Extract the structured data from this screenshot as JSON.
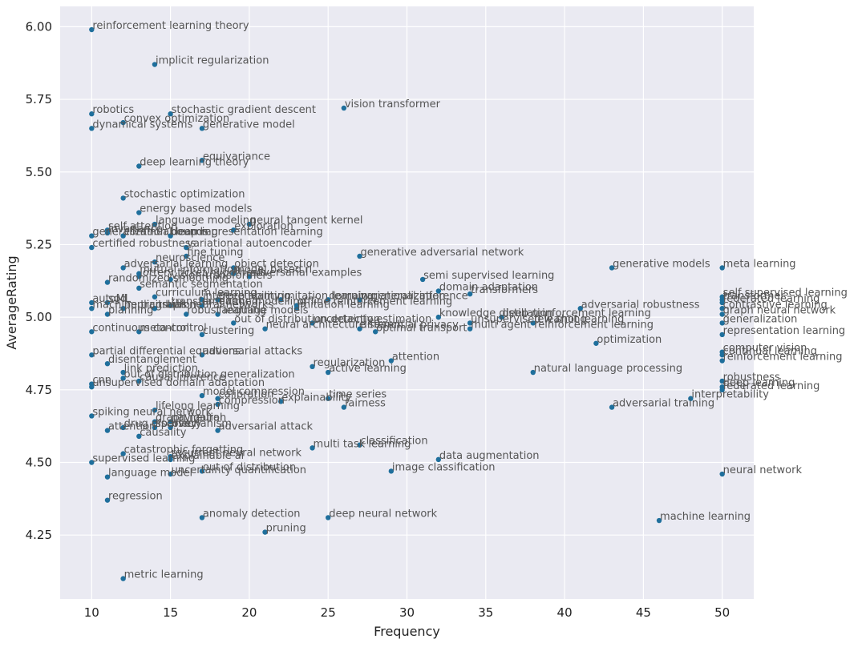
{
  "chart_data": {
    "type": "scatter",
    "xlabel": "Frequency",
    "ylabel": "AverageRating",
    "xlim": [
      8,
      52
    ],
    "ylim": [
      4.03,
      6.07
    ],
    "xticks": [
      10,
      15,
      20,
      25,
      30,
      35,
      40,
      45,
      50
    ],
    "yticks": [
      4.25,
      4.5,
      4.75,
      5.0,
      5.25,
      5.5,
      5.75,
      6.0
    ],
    "xtick_labels": [
      "10",
      "15",
      "20",
      "25",
      "30",
      "35",
      "40",
      "45",
      "50"
    ],
    "ytick_labels": [
      "4.25",
      "4.50",
      "4.75",
      "5.00",
      "5.25",
      "5.50",
      "5.75",
      "6.00"
    ],
    "grid": true,
    "marker_color": "#1f6f9c",
    "background_color": "#eaeaf2",
    "points": [
      {
        "x": 10,
        "y": 5.99,
        "label": "reinforcement learning theory"
      },
      {
        "x": 14,
        "y": 5.87,
        "label": "implicit regularization"
      },
      {
        "x": 10,
        "y": 5.7,
        "label": "robotics"
      },
      {
        "x": 15,
        "y": 5.7,
        "label": "stochastic gradient descent"
      },
      {
        "x": 26,
        "y": 5.72,
        "label": "vision transformer"
      },
      {
        "x": 12,
        "y": 5.67,
        "label": "convex optimization"
      },
      {
        "x": 10,
        "y": 5.65,
        "label": "dynamical systems"
      },
      {
        "x": 17,
        "y": 5.65,
        "label": "generative model"
      },
      {
        "x": 17,
        "y": 5.54,
        "label": "equivariance"
      },
      {
        "x": 13,
        "y": 5.52,
        "label": "deep learning theory"
      },
      {
        "x": 12,
        "y": 5.41,
        "label": "stochastic optimization"
      },
      {
        "x": 13,
        "y": 5.36,
        "label": "energy based models"
      },
      {
        "x": 14,
        "y": 5.32,
        "label": "language modeling"
      },
      {
        "x": 20,
        "y": 5.32,
        "label": "neural tangent kernel"
      },
      {
        "x": 19,
        "y": 5.3,
        "label": "exploration"
      },
      {
        "x": 11,
        "y": 5.3,
        "label": "self attention"
      },
      {
        "x": 11,
        "y": 5.29,
        "label": "invariance"
      },
      {
        "x": 12,
        "y": 5.28,
        "label": "continual learning"
      },
      {
        "x": 10,
        "y": 5.28,
        "label": "generalization bounds"
      },
      {
        "x": 15,
        "y": 5.28,
        "label": "deep representation learning"
      },
      {
        "x": 10,
        "y": 5.24,
        "label": "certified robustness"
      },
      {
        "x": 16,
        "y": 5.24,
        "label": "variational autoencoder"
      },
      {
        "x": 16,
        "y": 5.21,
        "label": "fine tuning"
      },
      {
        "x": 27,
        "y": 5.21,
        "label": "generative adversarial network"
      },
      {
        "x": 14,
        "y": 5.19,
        "label": "neuroscience"
      },
      {
        "x": 12,
        "y": 5.17,
        "label": "adversarial learning"
      },
      {
        "x": 19,
        "y": 5.17,
        "label": "object detection"
      },
      {
        "x": 43,
        "y": 5.17,
        "label": "generative models"
      },
      {
        "x": 50,
        "y": 5.17,
        "label": "meta learning"
      },
      {
        "x": 13,
        "y": 5.15,
        "label": "mutual information"
      },
      {
        "x": 19,
        "y": 5.15,
        "label": "model based rl"
      },
      {
        "x": 20,
        "y": 5.14,
        "label": "adversarial examples"
      },
      {
        "x": 13,
        "y": 5.14,
        "label": "lottery ticket hypothesis"
      },
      {
        "x": 15,
        "y": 5.13,
        "label": "vision transformers"
      },
      {
        "x": 31,
        "y": 5.13,
        "label": "semi supervised learning"
      },
      {
        "x": 11,
        "y": 5.12,
        "label": "randomized smoothing"
      },
      {
        "x": 13,
        "y": 5.1,
        "label": "semantic segmentation"
      },
      {
        "x": 32,
        "y": 5.09,
        "label": "domain adaptation"
      },
      {
        "x": 34,
        "y": 5.08,
        "label": "transformers"
      },
      {
        "x": 14,
        "y": 5.07,
        "label": "curriculum learning"
      },
      {
        "x": 17,
        "y": 5.06,
        "label": "interpretability"
      },
      {
        "x": 18,
        "y": 5.06,
        "label": "deep learning"
      },
      {
        "x": 22,
        "y": 5.06,
        "label": "imitation learning"
      },
      {
        "x": 25,
        "y": 5.06,
        "label": "domain generalization"
      },
      {
        "x": 27,
        "y": 5.06,
        "label": "variational inference"
      },
      {
        "x": 50,
        "y": 5.07,
        "label": "self supervised learning"
      },
      {
        "x": 50,
        "y": 5.06,
        "label": "transformer"
      },
      {
        "x": 10,
        "y": 5.05,
        "label": "autoML"
      },
      {
        "x": 11,
        "y": 5.05,
        "label": "sgd"
      },
      {
        "x": 15,
        "y": 5.04,
        "label": "transfer learning"
      },
      {
        "x": 17,
        "y": 5.04,
        "label": "language modelling"
      },
      {
        "x": 23,
        "y": 5.04,
        "label": "offline reinforcement learning"
      },
      {
        "x": 50,
        "y": 5.05,
        "label": "federated learning"
      },
      {
        "x": 41,
        "y": 5.03,
        "label": "adversarial robustness"
      },
      {
        "x": 10,
        "y": 5.03,
        "label": "machine translation"
      },
      {
        "x": 12,
        "y": 5.03,
        "label": "implicit bias"
      },
      {
        "x": 14,
        "y": 5.03,
        "label": "graph neural networks"
      },
      {
        "x": 23,
        "y": 5.03,
        "label": "imitation learning"
      },
      {
        "x": 50,
        "y": 5.03,
        "label": "contrastive learning"
      },
      {
        "x": 11,
        "y": 5.01,
        "label": "planning"
      },
      {
        "x": 16,
        "y": 5.01,
        "label": "robust learning"
      },
      {
        "x": 18,
        "y": 5.01,
        "label": "language models"
      },
      {
        "x": 32,
        "y": 5.0,
        "label": "knowledge distillation"
      },
      {
        "x": 36,
        "y": 5.0,
        "label": "deep reinforcement learning"
      },
      {
        "x": 50,
        "y": 5.01,
        "label": "graph neural network"
      },
      {
        "x": 19,
        "y": 4.98,
        "label": "out of distribution detection"
      },
      {
        "x": 24,
        "y": 4.98,
        "label": "uncertainty estimation"
      },
      {
        "x": 34,
        "y": 4.98,
        "label": "unsupervised learning"
      },
      {
        "x": 38,
        "y": 4.98,
        "label": "few shot learning"
      },
      {
        "x": 50,
        "y": 4.98,
        "label": "generalization"
      },
      {
        "x": 21,
        "y": 4.96,
        "label": "neural architecture search"
      },
      {
        "x": 27,
        "y": 4.96,
        "label": "differential privacy"
      },
      {
        "x": 34,
        "y": 4.96,
        "label": "multi agent reinforcement learning"
      },
      {
        "x": 10,
        "y": 4.95,
        "label": "continuous control"
      },
      {
        "x": 13,
        "y": 4.95,
        "label": "meta-control"
      },
      {
        "x": 28,
        "y": 4.95,
        "label": "optimal transport"
      },
      {
        "x": 50,
        "y": 4.94,
        "label": "representation learning"
      },
      {
        "x": 17,
        "y": 4.94,
        "label": "clustering"
      },
      {
        "x": 42,
        "y": 4.91,
        "label": "optimization"
      },
      {
        "x": 50,
        "y": 4.88,
        "label": "computer vision"
      },
      {
        "x": 50,
        "y": 4.87,
        "label": "continual learning"
      },
      {
        "x": 10,
        "y": 4.87,
        "label": "partial differential equations"
      },
      {
        "x": 17,
        "y": 4.87,
        "label": "adversarial attacks"
      },
      {
        "x": 50,
        "y": 4.85,
        "label": "reinforcement learning"
      },
      {
        "x": 29,
        "y": 4.85,
        "label": "attention"
      },
      {
        "x": 11,
        "y": 4.84,
        "label": "disentanglement"
      },
      {
        "x": 24,
        "y": 4.83,
        "label": "regularization"
      },
      {
        "x": 25,
        "y": 4.81,
        "label": "active learning"
      },
      {
        "x": 38,
        "y": 4.81,
        "label": "natural language processing"
      },
      {
        "x": 12,
        "y": 4.81,
        "label": "link prediction"
      },
      {
        "x": 12,
        "y": 4.79,
        "label": "out of distribution generalization"
      },
      {
        "x": 13,
        "y": 4.78,
        "label": "causal inference"
      },
      {
        "x": 50,
        "y": 4.78,
        "label": "robustness"
      },
      {
        "x": 10,
        "y": 4.77,
        "label": "cnn"
      },
      {
        "x": 50,
        "y": 4.76,
        "label": "deep learning"
      },
      {
        "x": 10,
        "y": 4.76,
        "label": "unsupervised domain adaptation"
      },
      {
        "x": 50,
        "y": 4.75,
        "label": "federated learning"
      },
      {
        "x": 17,
        "y": 4.73,
        "label": "model compression"
      },
      {
        "x": 18,
        "y": 4.72,
        "label": "calibration"
      },
      {
        "x": 48,
        "y": 4.72,
        "label": "interpretability"
      },
      {
        "x": 25,
        "y": 4.72,
        "label": "time series"
      },
      {
        "x": 22,
        "y": 4.71,
        "label": "explainability"
      },
      {
        "x": 18,
        "y": 4.7,
        "label": "compression"
      },
      {
        "x": 26,
        "y": 4.69,
        "label": "fairness"
      },
      {
        "x": 43,
        "y": 4.69,
        "label": "adversarial training"
      },
      {
        "x": 14,
        "y": 4.68,
        "label": "lifelong learning"
      },
      {
        "x": 10,
        "y": 4.66,
        "label": "spiking neural network"
      },
      {
        "x": 14,
        "y": 4.64,
        "label": "graph neural"
      },
      {
        "x": 15,
        "y": 4.64,
        "label": "navigation"
      },
      {
        "x": 12,
        "y": 4.62,
        "label": "drug discovery"
      },
      {
        "x": 11,
        "y": 4.61,
        "label": "attention"
      },
      {
        "x": 14,
        "y": 4.62,
        "label": "sparsity"
      },
      {
        "x": 15,
        "y": 4.62,
        "label": "mechanism"
      },
      {
        "x": 18,
        "y": 4.61,
        "label": "adversarial attack"
      },
      {
        "x": 13,
        "y": 4.59,
        "label": "causality"
      },
      {
        "x": 27,
        "y": 4.56,
        "label": "classification"
      },
      {
        "x": 24,
        "y": 4.55,
        "label": "multi task learning"
      },
      {
        "x": 12,
        "y": 4.53,
        "label": "catastrophic forgetting"
      },
      {
        "x": 15,
        "y": 4.52,
        "label": "recurrent neural network"
      },
      {
        "x": 15,
        "y": 4.51,
        "label": "explainable ai"
      },
      {
        "x": 32,
        "y": 4.51,
        "label": "data augmentation"
      },
      {
        "x": 10,
        "y": 4.5,
        "label": "supervised learning"
      },
      {
        "x": 17,
        "y": 4.47,
        "label": "out of distribution"
      },
      {
        "x": 29,
        "y": 4.47,
        "label": "image classification"
      },
      {
        "x": 50,
        "y": 4.46,
        "label": "neural network"
      },
      {
        "x": 15,
        "y": 4.46,
        "label": "uncertainty quantification"
      },
      {
        "x": 11,
        "y": 4.45,
        "label": "language model"
      },
      {
        "x": 11,
        "y": 4.37,
        "label": "regression"
      },
      {
        "x": 17,
        "y": 4.31,
        "label": "anomaly detection"
      },
      {
        "x": 25,
        "y": 4.31,
        "label": "deep neural network"
      },
      {
        "x": 46,
        "y": 4.3,
        "label": "machine learning"
      },
      {
        "x": 21,
        "y": 4.26,
        "label": "pruning"
      },
      {
        "x": 12,
        "y": 4.1,
        "label": "metric learning"
      }
    ]
  }
}
